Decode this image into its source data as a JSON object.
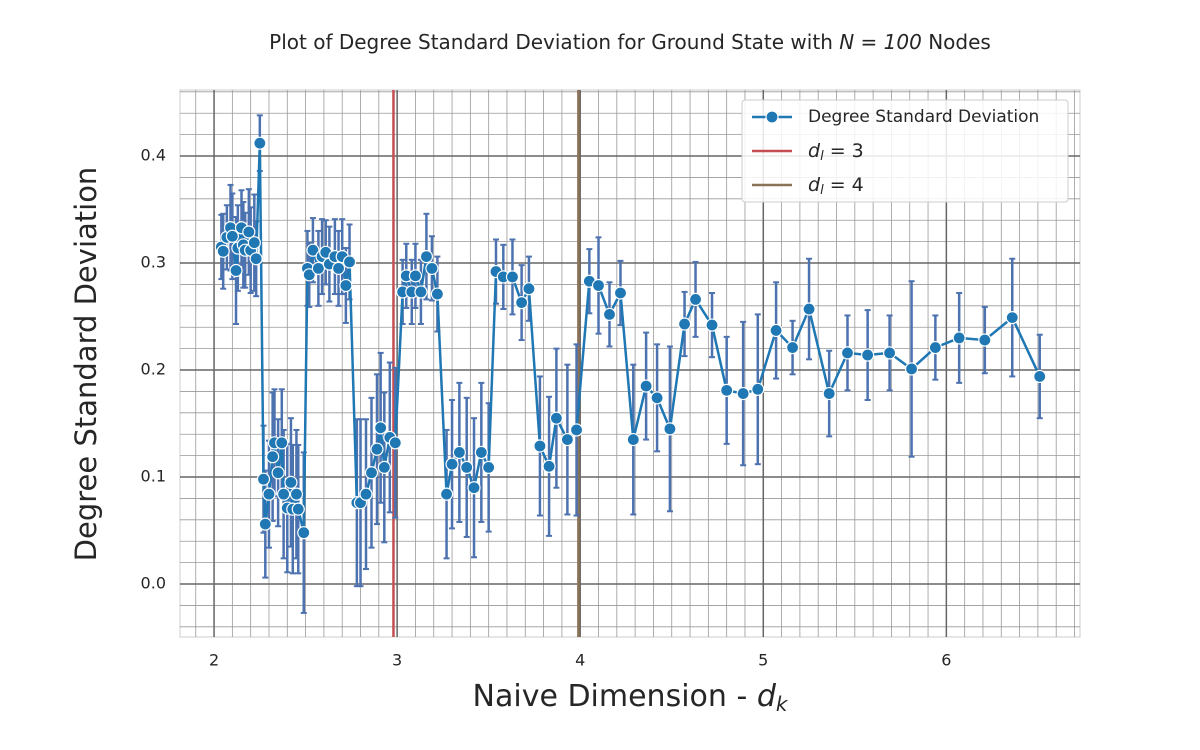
{
  "chart_data": {
    "type": "errorbar-line",
    "title": {
      "text": "Plot of Degree Standard Deviation for Ground State with ",
      "math": "N = 100",
      "end": " Nodes"
    },
    "xlabel": {
      "text": "Naive Dimension - ",
      "math": "d",
      "sub": "k"
    },
    "ylabel": "Degree Standard Deviation",
    "xlim": [
      1.814,
      6.73
    ],
    "ylim": [
      -0.0495,
      0.4617
    ],
    "xticks": [
      2,
      3,
      4,
      5,
      6
    ],
    "yticks": [
      {
        "value": 0,
        "label": "0.0"
      },
      0.1,
      0.2,
      0.3,
      0.4
    ],
    "xminor": [
      1.9,
      2.1,
      2.2,
      2.3,
      2.4,
      2.5,
      2.6,
      2.7,
      2.8,
      2.9,
      3.1,
      3.2,
      3.3,
      3.4,
      3.5,
      3.6,
      3.7,
      3.8,
      3.9,
      4.1,
      4.2,
      4.3,
      4.4,
      4.5,
      4.6,
      4.7,
      4.8,
      4.9,
      5.1,
      5.2,
      5.3,
      5.4,
      5.5,
      5.6,
      5.7,
      5.8,
      5.9,
      6.1,
      6.2,
      6.3,
      6.4,
      6.5,
      6.6,
      6.7
    ],
    "yminor": [
      -0.04,
      -0.02,
      0.02,
      0.04,
      0.06,
      0.08,
      0.12,
      0.14,
      0.16,
      0.18,
      0.22,
      0.24,
      0.26,
      0.28,
      0.32,
      0.34,
      0.36,
      0.38,
      0.42,
      0.44,
      0.46
    ],
    "grid": true,
    "legend": "upper right",
    "series": [
      {
        "name": "Degree Standard Deviation",
        "color": "#1f77b4",
        "error_color": "#4c72b0",
        "x": [
          2.04,
          2.05,
          2.07,
          2.09,
          2.1,
          2.12,
          2.13,
          2.15,
          2.16,
          2.17,
          2.19,
          2.2,
          2.22,
          2.23,
          2.25,
          2.27,
          2.28,
          2.3,
          2.32,
          2.33,
          2.35,
          2.37,
          2.38,
          2.4,
          2.42,
          2.43,
          2.45,
          2.46,
          2.49,
          2.51,
          2.52,
          2.54,
          2.57,
          2.59,
          2.61,
          2.63,
          2.66,
          2.68,
          2.7,
          2.72,
          2.74,
          2.78,
          2.8,
          2.83,
          2.86,
          2.89,
          2.91,
          2.93,
          2.96,
          2.99,
          3.03,
          3.05,
          3.08,
          3.1,
          3.13,
          3.16,
          3.19,
          3.22,
          3.27,
          3.3,
          3.34,
          3.38,
          3.42,
          3.46,
          3.5,
          3.54,
          3.58,
          3.63,
          3.68,
          3.72,
          3.78,
          3.83,
          3.87,
          3.93,
          3.98,
          4.05,
          4.1,
          4.16,
          4.22,
          4.29,
          4.36,
          4.42,
          4.49,
          4.57,
          4.63,
          4.72,
          4.8,
          4.89,
          4.97,
          5.07,
          5.16,
          5.25,
          5.36,
          5.46,
          5.57,
          5.69,
          5.81,
          5.94,
          6.07,
          6.21,
          6.36,
          6.51
        ],
        "values": [
          0.315,
          0.311,
          0.324,
          0.333,
          0.325,
          0.293,
          0.314,
          0.333,
          0.317,
          0.312,
          0.329,
          0.312,
          0.319,
          0.304,
          0.412,
          0.098,
          0.056,
          0.084,
          0.119,
          0.132,
          0.104,
          0.132,
          0.084,
          0.071,
          0.095,
          0.07,
          0.084,
          0.07,
          0.048,
          0.295,
          0.289,
          0.312,
          0.295,
          0.306,
          0.31,
          0.299,
          0.306,
          0.295,
          0.306,
          0.279,
          0.301,
          0.076,
          0.076,
          0.084,
          0.104,
          0.126,
          0.146,
          0.109,
          0.137,
          0.132,
          0.273,
          0.288,
          0.273,
          0.288,
          0.273,
          0.306,
          0.295,
          0.271,
          0.084,
          0.112,
          0.123,
          0.109,
          0.09,
          0.123,
          0.109,
          0.292,
          0.287,
          0.287,
          0.263,
          0.276,
          0.129,
          0.11,
          0.155,
          0.135,
          0.144,
          0.283,
          0.279,
          0.252,
          0.272,
          0.135,
          0.185,
          0.174,
          0.145,
          0.243,
          0.266,
          0.242,
          0.181,
          0.178,
          0.182,
          0.237,
          0.221,
          0.257,
          0.178,
          0.216,
          0.214,
          0.216,
          0.201,
          0.221,
          0.23,
          0.228,
          0.249,
          0.194
        ],
        "errors": [
          0.03,
          0.035,
          0.03,
          0.04,
          0.04,
          0.05,
          0.04,
          0.035,
          0.04,
          0.035,
          0.04,
          0.04,
          0.045,
          0.035,
          0.026,
          0.05,
          0.05,
          0.05,
          0.06,
          0.05,
          0.05,
          0.05,
          0.06,
          0.06,
          0.06,
          0.06,
          0.06,
          0.06,
          0.075,
          0.035,
          0.03,
          0.03,
          0.035,
          0.035,
          0.03,
          0.035,
          0.035,
          0.035,
          0.035,
          0.035,
          0.035,
          0.078,
          0.078,
          0.07,
          0.07,
          0.07,
          0.07,
          0.07,
          0.07,
          0.07,
          0.03,
          0.03,
          0.03,
          0.03,
          0.03,
          0.04,
          0.03,
          0.035,
          0.06,
          0.06,
          0.065,
          0.065,
          0.065,
          0.065,
          0.06,
          0.03,
          0.03,
          0.035,
          0.035,
          0.03,
          0.065,
          0.065,
          0.065,
          0.07,
          0.08,
          0.03,
          0.045,
          0.03,
          0.03,
          0.07,
          0.05,
          0.05,
          0.077,
          0.03,
          0.035,
          0.03,
          0.05,
          0.067,
          0.07,
          0.045,
          0.025,
          0.047,
          0.04,
          0.035,
          0.042,
          0.035,
          0.082,
          0.03,
          0.042,
          0.031,
          0.055,
          0.039
        ]
      }
    ],
    "vlines": [
      {
        "x": 2.98,
        "color": "#c44e52",
        "label": {
          "math": "d",
          "sub": "l",
          "text": " = 3"
        }
      },
      {
        "x": 3.99,
        "color": "#8c7256",
        "label": {
          "math": "d",
          "sub": "l",
          "text": " = 4"
        }
      }
    ]
  }
}
